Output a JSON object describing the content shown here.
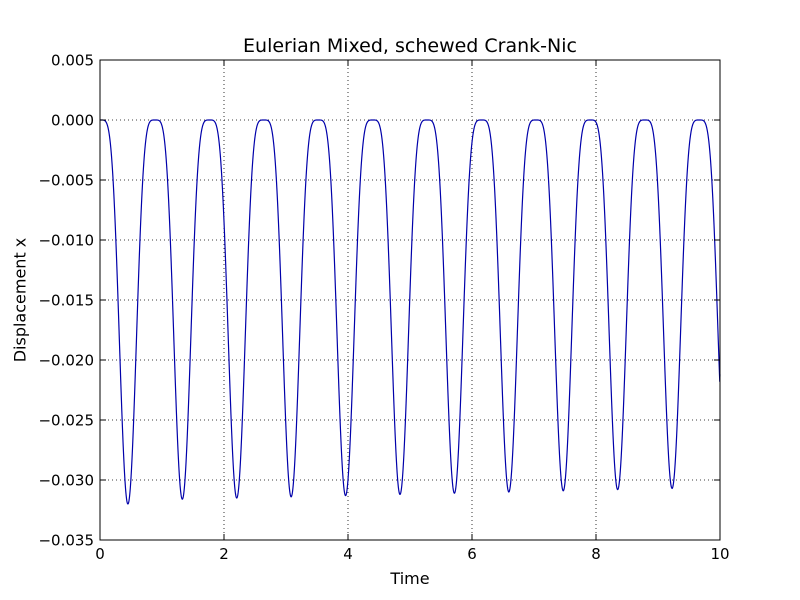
{
  "chart_data": {
    "type": "line",
    "title": "Eulerian Mixed, schewed Crank-Nic",
    "xlabel": "Time",
    "ylabel": "Displacement x",
    "xlim": [
      0,
      10
    ],
    "ylim": [
      -0.035,
      0.005
    ],
    "grid": true,
    "x_ticks": [
      0,
      2,
      4,
      6,
      8,
      10
    ],
    "x_tick_labels": [
      "0",
      "2",
      "4",
      "6",
      "8",
      "10"
    ],
    "y_ticks": [
      0.005,
      0.0,
      -0.005,
      -0.01,
      -0.015,
      -0.02,
      -0.025,
      -0.03,
      -0.035
    ],
    "y_tick_labels": [
      "0.005",
      "0.000",
      "−0.005",
      "−0.010",
      "−0.015",
      "−0.020",
      "−0.025",
      "−0.030",
      "−0.035"
    ],
    "series": [
      {
        "name": "displacement",
        "color": "#0000aa",
        "period": 0.8777,
        "trough_times": [
          0.45,
          1.32,
          2.2,
          3.08,
          3.96,
          4.83,
          5.71,
          6.59,
          7.47,
          8.34,
          9.22
        ],
        "trough_values": [
          -0.032,
          -0.0316,
          -0.0315,
          -0.0314,
          -0.0313,
          -0.0312,
          -0.0311,
          -0.031,
          -0.0309,
          -0.0308,
          -0.0307
        ],
        "end_point": [
          10,
          -0.0212
        ]
      }
    ]
  }
}
